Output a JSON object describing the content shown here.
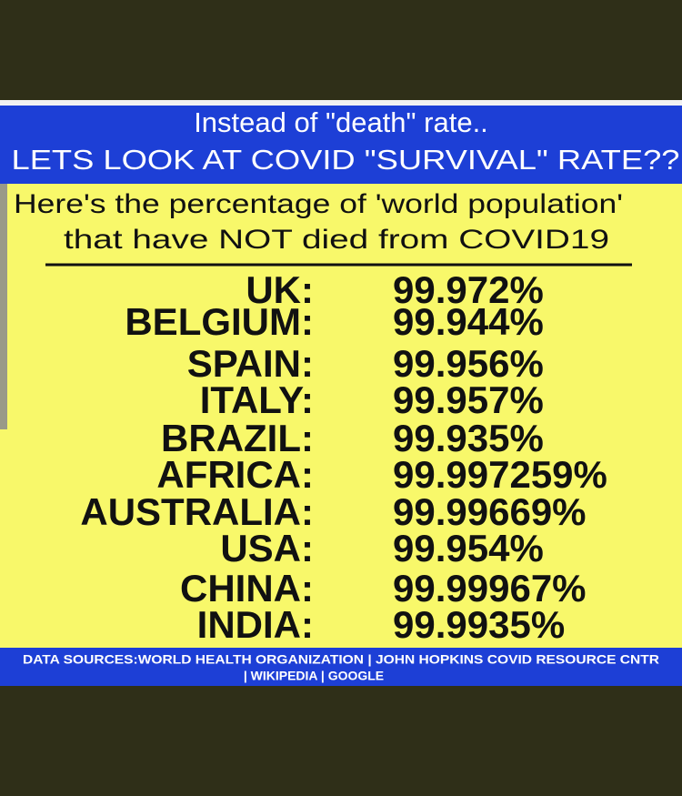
{
  "header": {
    "line1": "Instead of \"death\" rate..",
    "line2": "LETS LOOK AT COVID \"SURVIVAL\" RATE??"
  },
  "subtitle": {
    "line1": "Here's the percentage of 'world population'",
    "line2": "that have NOT died from COVID19"
  },
  "table": {
    "rows": [
      [
        "UK:",
        "99.972%"
      ],
      [
        "BELGIUM:",
        "99.944%"
      ],
      [
        "SPAIN:",
        "99.956%"
      ],
      [
        "ITALY:",
        "99.957%"
      ],
      [
        "BRAZIL:",
        "99.935%"
      ],
      [
        "AFRICA:",
        "99.997259%"
      ],
      [
        "AUSTRALIA:",
        "99.99669%"
      ],
      [
        "USA:",
        "99.954%"
      ],
      [
        "CHINA:",
        "99.99967%"
      ],
      [
        "INDIA:",
        "99.9935%"
      ]
    ]
  },
  "footer": {
    "line1": "DATA SOURCES:WORLD HEALTH ORGANIZATION | JOHN HOPKINS COVID RESOURCE CNTR",
    "line2": "| WIKIPEDIA | GOOGLE"
  }
}
